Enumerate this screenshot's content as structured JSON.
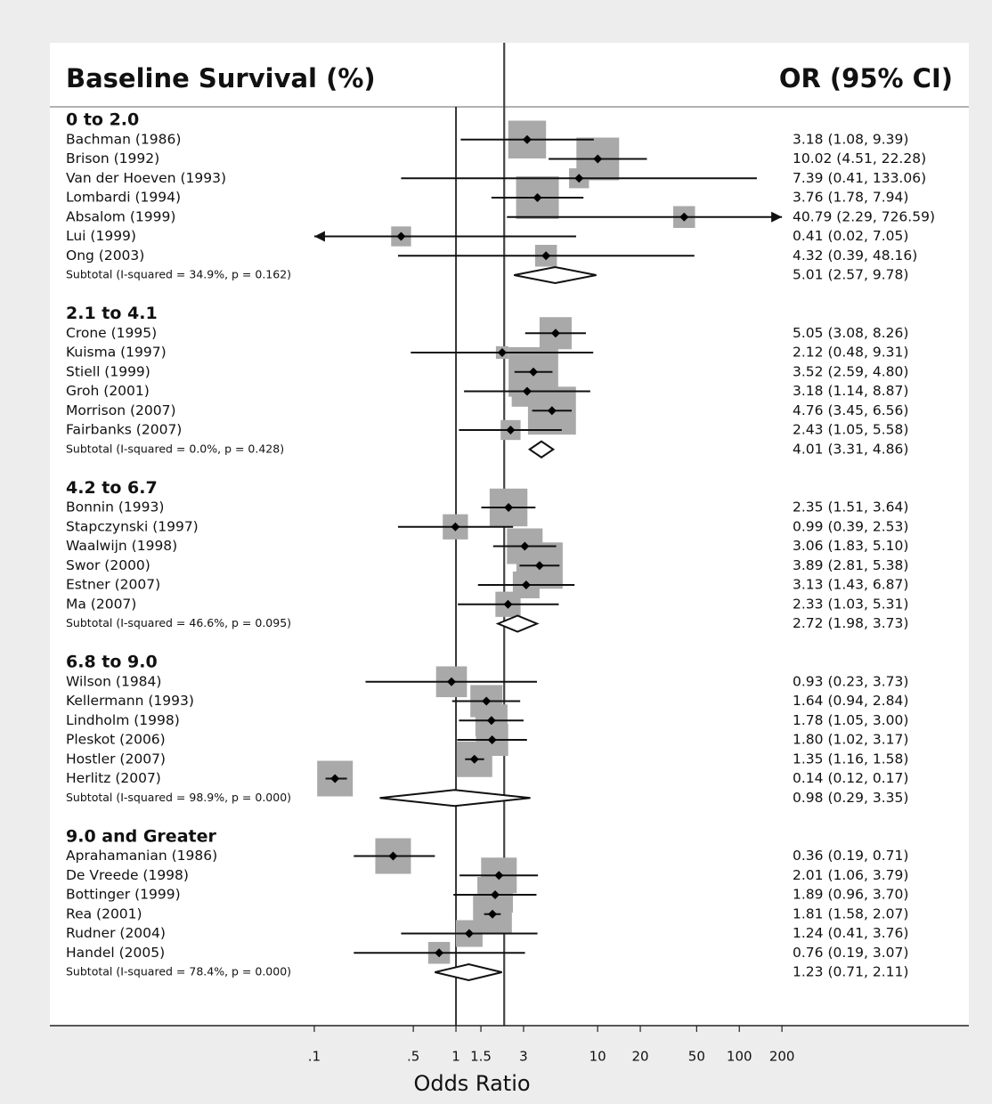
{
  "chart_data": {
    "type": "forest",
    "title": "Baseline Survival (%)",
    "ci_header": "OR (95% CI)",
    "x_label": "Odds Ratio",
    "log_x": true,
    "xlim": [
      0.00136,
      4170
    ],
    "xticks": [
      {
        "value": 0.1,
        "label": ".1"
      },
      {
        "value": 0.5,
        "label": ".5"
      },
      1,
      1.5,
      3,
      10,
      20,
      50,
      100,
      200
    ],
    "ci_clip": [
      0.1,
      200
    ],
    "null_line": 1,
    "overall_line": 2.19,
    "box_color": "#a9a9a9",
    "groups": [
      {
        "name": "0 to 2.0",
        "studies": [
          {
            "label": "Bachman (1986)",
            "or": 3.18,
            "lo": 1.08,
            "hi": 9.39,
            "ci_label": "3.18 (1.08, 9.39)",
            "weight": 18
          },
          {
            "label": "Brison (1992)",
            "or": 10.02,
            "lo": 4.51,
            "hi": 22.28,
            "ci_label": "10.02 (4.51, 22.28)",
            "weight": 23
          },
          {
            "label": "Van der Hoeven (1993)",
            "or": 7.39,
            "lo": 0.41,
            "hi": 133.06,
            "ci_label": "7.39 (0.41, 133.06)",
            "weight": 5
          },
          {
            "label": "Lombardi (1994)",
            "or": 3.76,
            "lo": 1.78,
            "hi": 7.94,
            "ci_label": "3.76 (1.78, 7.94)",
            "weight": 23
          },
          {
            "label": "Absalom (1999)",
            "or": 40.79,
            "lo": 2.29,
            "hi": 726.59,
            "ci_label": "40.79 (2.29, 726.59)",
            "weight": 6
          },
          {
            "label": "Lui (1999)",
            "or": 0.41,
            "lo": 0.02,
            "hi": 7.05,
            "ci_label": "0.41 (0.02, 7.05)",
            "weight": 5
          },
          {
            "label": "Ong (2003)",
            "or": 4.32,
            "lo": 0.39,
            "hi": 48.16,
            "ci_label": "4.32 (0.39, 48.16)",
            "weight": 6
          }
        ],
        "subtotal": {
          "label": "Subtotal  (I-squared = 34.9%, p = 0.162)",
          "or": 5.01,
          "lo": 2.57,
          "hi": 9.78,
          "ci_label": "5.01 (2.57, 9.78)"
        }
      },
      {
        "name": "2.1 to 4.1",
        "studies": [
          {
            "label": "Crone (1995)",
            "or": 5.05,
            "lo": 3.08,
            "hi": 8.26,
            "ci_label": "5.05 (3.08, 8.26)",
            "weight": 13
          },
          {
            "label": "Kuisma (1997)",
            "or": 2.12,
            "lo": 0.48,
            "hi": 9.31,
            "ci_label": "2.12 (0.48, 9.31)",
            "weight": 2
          },
          {
            "label": "Stiell (1999)",
            "or": 3.52,
            "lo": 2.59,
            "hi": 4.8,
            "ci_label": "3.52 (2.59, 4.80)",
            "weight": 31
          },
          {
            "label": "Groh (2001)",
            "or": 3.18,
            "lo": 1.14,
            "hi": 8.87,
            "ci_label": "3.18 (1.14, 8.87)",
            "weight": 12
          },
          {
            "label": "Morrison (2007)",
            "or": 4.76,
            "lo": 3.45,
            "hi": 6.56,
            "ci_label": "4.76 (3.45, 6.56)",
            "weight": 29
          },
          {
            "label": "Fairbanks (2007)",
            "or": 2.43,
            "lo": 1.05,
            "hi": 5.58,
            "ci_label": "2.43 (1.05, 5.58)",
            "weight": 5
          }
        ],
        "subtotal": {
          "label": "Subtotal  (I-squared = 0.0%, p = 0.428)",
          "or": 4.01,
          "lo": 3.31,
          "hi": 4.86,
          "ci_label": "4.01 (3.31, 4.86)"
        }
      },
      {
        "name": "4.2 to 6.7",
        "studies": [
          {
            "label": "Bonnin (1993)",
            "or": 2.35,
            "lo": 1.51,
            "hi": 3.64,
            "ci_label": "2.35 (1.51, 3.64)",
            "weight": 18
          },
          {
            "label": "Stapczynski (1997)",
            "or": 0.99,
            "lo": 0.39,
            "hi": 2.53,
            "ci_label": "0.99 (0.39, 2.53)",
            "weight": 8
          },
          {
            "label": "Waalwijn (1998)",
            "or": 3.06,
            "lo": 1.83,
            "hi": 5.1,
            "ci_label": "3.06 (1.83, 5.10)",
            "weight": 16
          },
          {
            "label": "Swor (2000)",
            "or": 3.89,
            "lo": 2.81,
            "hi": 5.38,
            "ci_label": "3.89 (2.81, 5.38)",
            "weight": 27
          },
          {
            "label": "Estner (2007)",
            "or": 3.13,
            "lo": 1.43,
            "hi": 6.87,
            "ci_label": "3.13 (1.43, 6.87)",
            "weight": 9
          },
          {
            "label": "Ma (2007)",
            "or": 2.33,
            "lo": 1.03,
            "hi": 5.31,
            "ci_label": "2.33 (1.03, 5.31)",
            "weight": 8
          }
        ],
        "subtotal": {
          "label": "Subtotal  (I-squared = 46.6%, p = 0.095)",
          "or": 2.72,
          "lo": 1.98,
          "hi": 3.73,
          "ci_label": "2.72 (1.98, 3.73)"
        }
      },
      {
        "name": "6.8 to 9.0",
        "studies": [
          {
            "label": "Wilson (1984)",
            "or": 0.93,
            "lo": 0.23,
            "hi": 3.73,
            "ci_label": "0.93 (0.23, 3.73)",
            "weight": 12
          },
          {
            "label": "Kellermann (1993)",
            "or": 1.64,
            "lo": 0.94,
            "hi": 2.84,
            "ci_label": "1.64 (0.94, 2.84)",
            "weight": 13
          },
          {
            "label": "Lindholm (1998)",
            "or": 1.78,
            "lo": 1.05,
            "hi": 3.0,
            "ci_label": "1.78 (1.05, 3.00)",
            "weight": 13
          },
          {
            "label": "Pleskot (2006)",
            "or": 1.8,
            "lo": 1.02,
            "hi": 3.17,
            "ci_label": "1.80 (1.02, 3.17)",
            "weight": 13
          },
          {
            "label": "Hostler (2007)",
            "or": 1.35,
            "lo": 1.16,
            "hi": 1.58,
            "ci_label": "1.35 (1.16, 1.58)",
            "weight": 16
          },
          {
            "label": "Herlitz (2007)",
            "or": 0.14,
            "lo": 0.12,
            "hi": 0.17,
            "ci_label": "0.14 (0.12, 0.17)",
            "weight": 16
          }
        ],
        "subtotal": {
          "label": "Subtotal  (I-squared = 98.9%, p = 0.000)",
          "or": 0.98,
          "lo": 0.29,
          "hi": 3.35,
          "ci_label": "0.98 (0.29, 3.35)"
        }
      },
      {
        "name": "9.0 and Greater",
        "studies": [
          {
            "label": "Aprahamanian (1986)",
            "or": 0.36,
            "lo": 0.19,
            "hi": 0.71,
            "ci_label": "0.36 (0.19, 0.71)",
            "weight": 16
          },
          {
            "label": "De Vreede (1998)",
            "or": 2.01,
            "lo": 1.06,
            "hi": 3.79,
            "ci_label": "2.01 (1.06, 3.79)",
            "weight": 16
          },
          {
            "label": "Bottinger (1999)",
            "or": 1.89,
            "lo": 0.96,
            "hi": 3.7,
            "ci_label": "1.89 (0.96, 3.70)",
            "weight": 16
          },
          {
            "label": "Rea (2001)",
            "or": 1.81,
            "lo": 1.58,
            "hi": 2.07,
            "ci_label": "1.81 (1.58, 2.07)",
            "weight": 19
          },
          {
            "label": "Rudner (2004)",
            "or": 1.24,
            "lo": 0.41,
            "hi": 3.76,
            "ci_label": "1.24 (0.41, 3.76)",
            "weight": 9
          },
          {
            "label": "Handel (2005)",
            "or": 0.76,
            "lo": 0.19,
            "hi": 3.07,
            "ci_label": "0.76 (0.19, 3.07)",
            "weight": 6
          }
        ],
        "subtotal": {
          "label": "Subtotal  (I-squared = 78.4%, p = 0.000)",
          "or": 1.23,
          "lo": 0.71,
          "hi": 2.11,
          "ci_label": "1.23 (0.71, 2.11)"
        }
      }
    ]
  }
}
